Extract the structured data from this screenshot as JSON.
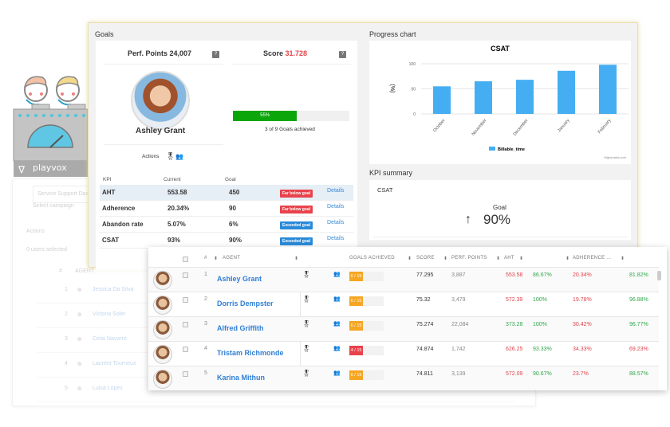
{
  "brand": {
    "name": "playvox"
  },
  "background_panel": {
    "campaign_placeholder": "Service Support Dash",
    "campaign_label": "Select campaign",
    "actions_label": "Actions",
    "users_selected": "0 users selected",
    "columns": {
      "num": "#",
      "agent": "AGENT"
    },
    "rows": [
      {
        "num": "1",
        "agent": "Jessica Da Silva"
      },
      {
        "num": "2",
        "agent": "Victoria Soler"
      },
      {
        "num": "3",
        "agent": "Celia Navarro"
      },
      {
        "num": "4",
        "agent": "Laurent Tourneux"
      },
      {
        "num": "5",
        "agent": "Luisa Lopez"
      }
    ]
  },
  "goals": {
    "title": "Goals",
    "perf_points_label": "Perf. Points",
    "perf_points": "24,007",
    "score_label": "Score",
    "score": "31.728",
    "help": "?",
    "agent_name": "Ashley Grant",
    "progress_percent": 55,
    "progress_text": "55%",
    "goals_achieved_text": "3 of 9 Goals achieved",
    "actions_label": "Actions",
    "kpi_headers": {
      "kpi": "KPI",
      "current": "Current",
      "goal": "Goal"
    },
    "kpis": [
      {
        "kpi": "AHT",
        "current": "553.58",
        "goal": "450",
        "status": "Far below goal",
        "status_color": "#e8434b",
        "link": "Details"
      },
      {
        "kpi": "Adherence",
        "current": "20.34%",
        "goal": "90",
        "status": "Far below goal",
        "status_color": "#e8434b",
        "link": "Details"
      },
      {
        "kpi": "Abandon rate",
        "current": "5.07%",
        "goal": "6%",
        "status": "Exceeded goal",
        "status_color": "#2a8ad8",
        "link": "Details"
      },
      {
        "kpi": "CSAT",
        "current": "93%",
        "goal": "90%",
        "status": "Exceeded goal",
        "status_color": "#2a8ad8",
        "link": "Details"
      }
    ]
  },
  "progress_chart": {
    "title": "Progress chart",
    "credit": "Highcharts.com"
  },
  "chart_data": {
    "type": "bar",
    "title": "CSAT",
    "xlabel": "",
    "ylabel": "(%)",
    "categories": [
      "October",
      "November",
      "December",
      "January",
      "February"
    ],
    "series": [
      {
        "name": "Billable_time",
        "values": [
          55,
          65,
          68,
          86,
          98
        ],
        "color": "#45aef2"
      }
    ],
    "ylim": [
      0,
      100
    ],
    "yticks": [
      0,
      50,
      100
    ],
    "grid": true,
    "legend": "bottom"
  },
  "kpi_summary": {
    "title": "KPI summary",
    "kpi": "CSAT",
    "goal_label": "Goal",
    "arrow": "↑",
    "goal_value": "90%"
  },
  "leaderboard": {
    "headers": {
      "num": "#",
      "agent": "AGENT",
      "goals": "GOALS ACHIEVED",
      "score": "SCORE",
      "perf": "PERF. POINTS",
      "aht": "AHT",
      "adherence": "ADHERENCE ..."
    },
    "rows": [
      {
        "num": "1",
        "name": "Ashley Grant",
        "goals": "6 / 15",
        "goals_fraction": 0.4,
        "goals_color": "#f5a623",
        "score": "77.295",
        "perf": "3,887",
        "aht": "553.58",
        "aht_color": "red",
        "c2": "86.67%",
        "c3": "20.34%",
        "c4": "81.82%"
      },
      {
        "num": "2",
        "name": "Dorris Dempster",
        "goals": "6 / 15",
        "goals_fraction": 0.4,
        "goals_color": "#f5a623",
        "score": "75.32",
        "perf": "3,479",
        "aht": "572.39",
        "aht_color": "red",
        "c2": "100%",
        "c3": "19.78%",
        "c4": "96.88%"
      },
      {
        "num": "3",
        "name": "Alfred Griffith",
        "goals": "6 / 15",
        "goals_fraction": 0.4,
        "goals_color": "#f5a623",
        "score": "75.274",
        "perf": "22,084",
        "aht": "373.28",
        "aht_color": "green",
        "c2": "100%",
        "c3": "30.42%",
        "c4": "96.77%"
      },
      {
        "num": "4",
        "name": "Tristam Richmonde",
        "goals": "4 / 15",
        "goals_fraction": 0.27,
        "goals_color": "#e8434b",
        "score": "74.874",
        "perf": "1,742",
        "aht": "626.25",
        "aht_color": "red",
        "c2": "93.33%",
        "c3": "34.33%",
        "c4": "69.23%"
      },
      {
        "num": "5",
        "name": "Karina Mithun",
        "goals": "6 / 15",
        "goals_fraction": 0.4,
        "goals_color": "#f5a623",
        "score": "74.811",
        "perf": "3,139",
        "aht": "572.09",
        "aht_color": "red",
        "c2": "90.67%",
        "c3": "23.7%",
        "c4": "88.57%"
      }
    ]
  }
}
